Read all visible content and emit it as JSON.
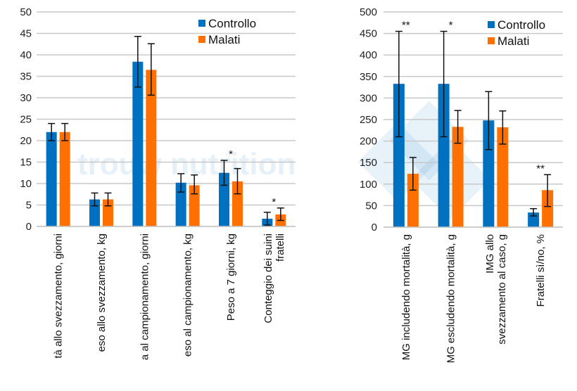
{
  "colors": {
    "controllo": "#0070C0",
    "malati": "#FF7000",
    "grid": "#C8C8C8",
    "error": "#111111"
  },
  "watermark": "trouw nutrition — a Nutreco company",
  "chart_data": [
    {
      "type": "bar",
      "categories": [
        "tà allo svezzamento, giorni",
        "eso allo svezzamento,  kg",
        "a al campionamento, giorni",
        "eso al campionamento, kg",
        "Peso a 7 giorni, kg",
        "Conteggio dei suini|fratelli"
      ],
      "series": [
        {
          "name": "Controllo",
          "values": [
            22,
            6.3,
            38.4,
            10.2,
            12.5,
            1.8
          ],
          "err_low": [
            20,
            4.8,
            32.5,
            8.0,
            9.6,
            0.3
          ],
          "err_high": [
            24,
            7.8,
            44.3,
            12.3,
            15.4,
            3.3
          ]
        },
        {
          "name": "Malati",
          "values": [
            22,
            6.3,
            36.5,
            9.6,
            10.5,
            2.8
          ],
          "err_low": [
            20,
            4.8,
            30.6,
            7.6,
            7.6,
            1.4
          ],
          "err_high": [
            24,
            7.8,
            42.6,
            12.0,
            13.5,
            4.3
          ]
        }
      ],
      "annotations": [
        "",
        "",
        "",
        "",
        "*",
        "*"
      ],
      "ylim": [
        0,
        50
      ],
      "yticks": [
        0,
        5,
        10,
        15,
        20,
        25,
        30,
        35,
        40,
        45,
        50
      ],
      "grid": true,
      "legend": "top-right"
    },
    {
      "type": "bar",
      "categories": [
        "MG includendo mortalità, g",
        "MG escludendo mortalità, g",
        "IMG allo|svezzamento al caso, g",
        "Fratelli sì/no, %"
      ],
      "series": [
        {
          "name": "Controllo",
          "values": [
            333,
            333,
            248,
            34
          ],
          "err_low": [
            210,
            210,
            180,
            26
          ],
          "err_high": [
            455,
            455,
            315,
            43
          ]
        },
        {
          "name": "Malati",
          "values": [
            124,
            233,
            232,
            86
          ],
          "err_low": [
            86,
            195,
            193,
            48
          ],
          "err_high": [
            162,
            271,
            270,
            122
          ]
        }
      ],
      "annotations": [
        "**",
        "*",
        "",
        "**"
      ],
      "ylim": [
        0,
        500
      ],
      "yticks": [
        0,
        50,
        100,
        150,
        200,
        250,
        300,
        350,
        400,
        450,
        500
      ],
      "grid": true,
      "legend": "top-right"
    }
  ]
}
